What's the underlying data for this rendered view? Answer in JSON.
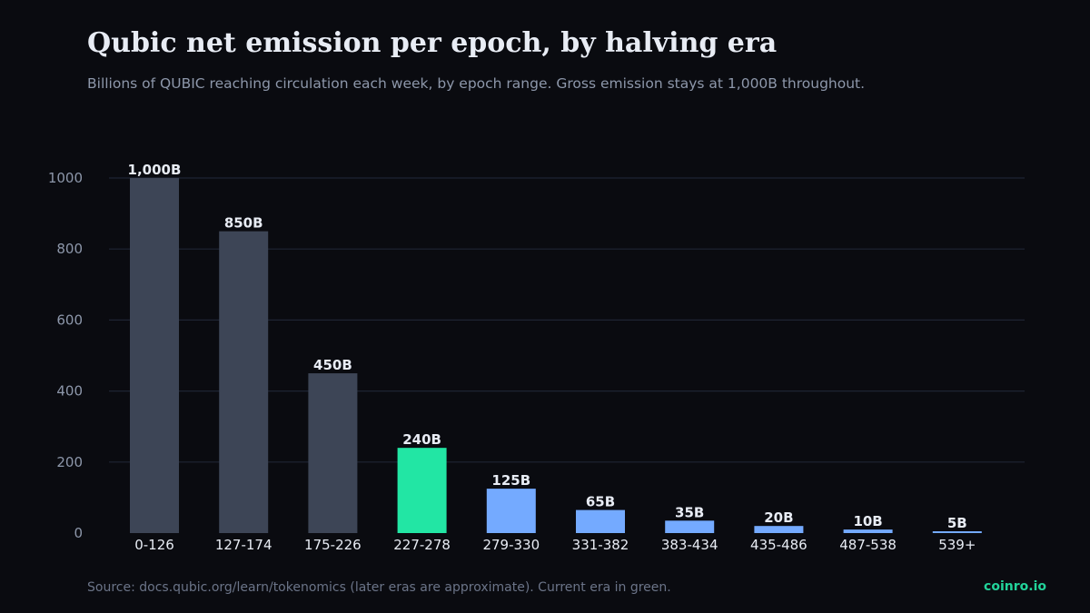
{
  "title": "Qubic net emission per epoch, by halving era",
  "subtitle": "Billions of QUBIC reaching circulation each week, by epoch range. Gross emission stays at 1,000B throughout.",
  "footer": {
    "source": "Source: docs.qubic.org/learn/tokenomics (later eras are approximate). Current era in green.",
    "brand": "coinro.io"
  },
  "colors": {
    "background": "#0a0b10",
    "past_era": "#3d4556",
    "current_era": "#22e6a4",
    "future_era": "#74aaff",
    "grid": "#1e2433",
    "axis_text": "#8d97aa",
    "label_text": "#e8ecf4",
    "brand": "#22d39a"
  },
  "chart_data": {
    "type": "bar",
    "title": "Qubic net emission per epoch, by halving era",
    "xlabel": "",
    "ylabel": "",
    "categories": [
      "0-126",
      "127-174",
      "175-226",
      "227-278",
      "279-330",
      "331-382",
      "383-434",
      "435-486",
      "487-538",
      "539+"
    ],
    "values": [
      1000,
      850,
      450,
      240,
      125,
      65,
      35,
      20,
      10,
      5
    ],
    "data_labels": [
      "1,000B",
      "850B",
      "450B",
      "240B",
      "125B",
      "65B",
      "35B",
      "20B",
      "10B",
      "5B"
    ],
    "bar_era": [
      "past",
      "past",
      "past",
      "current",
      "future",
      "future",
      "future",
      "future",
      "future",
      "future"
    ],
    "ylim": [
      0,
      1000
    ],
    "yticks": [
      0,
      200,
      400,
      600,
      800,
      1000
    ],
    "grid": true
  }
}
